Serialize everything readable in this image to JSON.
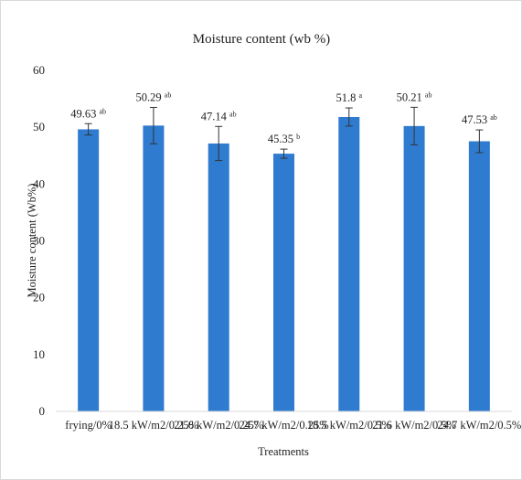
{
  "chart_data": {
    "type": "bar",
    "title": "Moisture content (wb %)",
    "xlabel": "Treatments",
    "ylabel": "Moisture content (Wb%)",
    "ylim": [
      0,
      60
    ],
    "yticks": [
      0,
      10,
      20,
      30,
      40,
      50,
      60
    ],
    "grid": false,
    "legend": "none",
    "bar_color": "#2e7bcf",
    "categories": [
      "frying/0%",
      "18.5 kW/m2/0.25%",
      "21.6 kW/m2/0.25%",
      "24.7 kW/m2/0.25%",
      "18.5 kW/m2/0.5%",
      "21.6 kW/m2/0.5%",
      "24.7 kW/m2/0.5%"
    ],
    "values": [
      49.63,
      50.29,
      47.14,
      45.35,
      51.8,
      50.21,
      47.53
    ],
    "value_labels": [
      "49.63",
      "50.29",
      "47.14",
      "45.35",
      "51.8",
      "50.21",
      "47.53"
    ],
    "significance": [
      "ab",
      "ab",
      "ab",
      "b",
      "a",
      "ab",
      "ab"
    ],
    "error": [
      1.0,
      3.2,
      3.0,
      0.8,
      1.6,
      3.3,
      2.0
    ]
  }
}
